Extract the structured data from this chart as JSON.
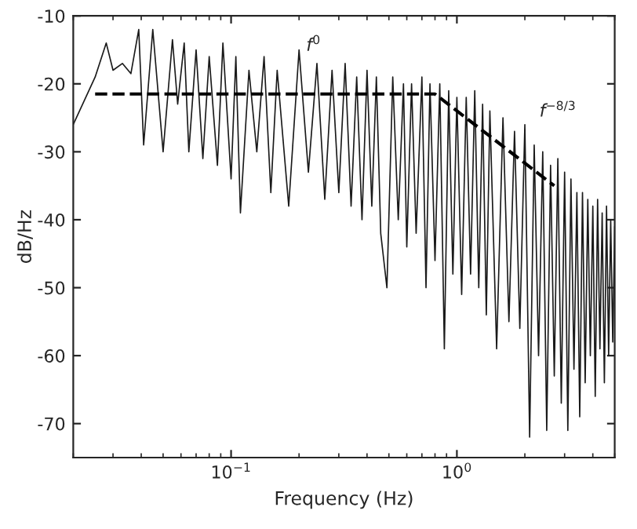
{
  "chart_data": {
    "type": "line",
    "xlabel": "Frequency (Hz)",
    "ylabel": "dB/Hz",
    "log": "x",
    "grid": false,
    "legend": false,
    "xlim": [
      0.02,
      5
    ],
    "xticks": [
      {
        "value": 0.1,
        "label": "10$^{−1}$"
      },
      {
        "value": 1,
        "label": "10$^{0}$"
      }
    ],
    "ylim": [
      -75,
      -10
    ],
    "yticks": [
      -10,
      -20,
      -30,
      -40,
      -50,
      -60,
      -70
    ],
    "series": [
      {
        "color": "#1a1a1a",
        "line_style": "solid",
        "x": [
          0.02,
          0.025,
          0.028,
          0.03,
          0.033,
          0.036,
          0.039,
          0.041,
          0.045,
          0.05,
          0.055,
          0.058,
          0.062,
          0.065,
          0.07,
          0.075,
          0.08,
          0.087,
          0.092,
          0.1,
          0.105,
          0.11,
          0.12,
          0.13,
          0.14,
          0.15,
          0.16,
          0.18,
          0.2,
          0.22,
          0.24,
          0.26,
          0.28,
          0.3,
          0.32,
          0.34,
          0.36,
          0.38,
          0.4,
          0.42,
          0.44,
          0.46,
          0.49,
          0.52,
          0.55,
          0.58,
          0.6,
          0.63,
          0.66,
          0.7,
          0.73,
          0.76,
          0.8,
          0.84,
          0.88,
          0.92,
          0.96,
          1.0,
          1.05,
          1.1,
          1.15,
          1.2,
          1.25,
          1.3,
          1.35,
          1.4,
          1.5,
          1.6,
          1.7,
          1.8,
          1.9,
          2.0,
          2.1,
          2.2,
          2.3,
          2.4,
          2.5,
          2.6,
          2.7,
          2.8,
          2.9,
          3.0,
          3.1,
          3.2,
          3.3,
          3.4,
          3.5,
          3.6,
          3.7,
          3.8,
          3.9,
          4.0,
          4.1,
          4.2,
          4.3,
          4.4,
          4.5,
          4.6,
          4.7,
          4.8,
          4.9,
          5.0
        ],
        "values": [
          -26,
          -19,
          -14,
          -18,
          -17,
          -18.5,
          -12,
          -29,
          -12,
          -30,
          -13.5,
          -23,
          -14,
          -30,
          -15,
          -31,
          -16,
          -32,
          -14,
          -34,
          -16,
          -39,
          -18,
          -30,
          -16,
          -36,
          -18,
          -38,
          -15,
          -33,
          -17,
          -37,
          -18,
          -36,
          -17,
          -38,
          -19,
          -40,
          -18,
          -38,
          -19,
          -42,
          -50,
          -19,
          -40,
          -20,
          -44,
          -20,
          -42,
          -19,
          -50,
          -20,
          -46,
          -20,
          -59,
          -21,
          -48,
          -22,
          -51,
          -22,
          -48,
          -21,
          -50,
          -23,
          -54,
          -24,
          -59,
          -25,
          -55,
          -27,
          -56,
          -26,
          -72,
          -29,
          -60,
          -30,
          -71,
          -32,
          -63,
          -31,
          -67,
          -33,
          -71,
          -34,
          -62,
          -36,
          -69,
          -36,
          -64,
          -37,
          -60,
          -38,
          -66,
          -37,
          -59,
          -39,
          -64,
          -38,
          -60,
          -40,
          -58,
          -41
        ]
      },
      {
        "color": "#000000",
        "line_style": "dashed",
        "x": [
          0.025,
          0.8,
          2.7
        ],
        "values": [
          -21.5,
          -21.5,
          -35
        ]
      }
    ],
    "annotations": [
      {
        "text": "f$^{0}$",
        "x": 0.215,
        "y": -21.5
      },
      {
        "text": "f$^{−8/3}$",
        "x": 1.7,
        "y": -29.9
      }
    ]
  }
}
